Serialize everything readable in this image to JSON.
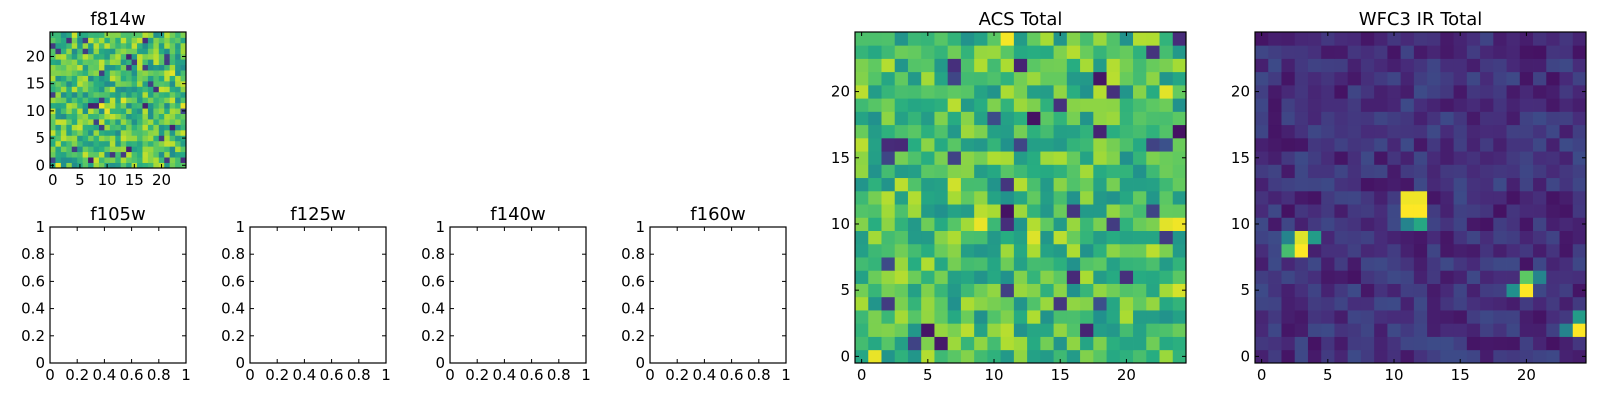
{
  "colors": {
    "background": "#ffffff",
    "axes": "#000000",
    "viridis_low": "#440154",
    "viridis_mid": "#21918c",
    "viridis_high": "#fde725"
  },
  "chart_data": [
    {
      "type": "heatmap",
      "title": "f814w",
      "grid_size": [
        25,
        25
      ],
      "colormap": "viridis",
      "xticks": [
        0,
        5,
        10,
        15,
        20
      ],
      "yticks": [
        0,
        5,
        10,
        15,
        20
      ],
      "xlim": [
        -0.5,
        24.5
      ],
      "ylim": [
        -0.5,
        24.5
      ],
      "noise": {
        "seed": 1,
        "mean": 0.7,
        "spread": 0.22,
        "low_outlier_rate": 0.05,
        "low_value": 0.08
      },
      "hotspots": [
        {
          "x": 9,
          "y": 11,
          "value": 0.98
        },
        {
          "x": 10,
          "y": 10,
          "value": 0.96
        },
        {
          "x": 13,
          "y": 12,
          "value": 0.95
        },
        {
          "x": 24,
          "y": 11,
          "value": 0.97
        },
        {
          "x": 1,
          "y": 0,
          "value": 0.97
        },
        {
          "x": 22,
          "y": 17,
          "value": 0.96
        }
      ]
    },
    {
      "type": "heatmap",
      "title": "f105w",
      "empty": true,
      "xticks": [
        0.0,
        0.2,
        0.4,
        0.6,
        0.8,
        1.0
      ],
      "yticks": [
        0.0,
        0.2,
        0.4,
        0.6,
        0.8,
        1.0
      ],
      "xlim": [
        0,
        1
      ],
      "ylim": [
        0,
        1
      ]
    },
    {
      "type": "heatmap",
      "title": "f125w",
      "empty": true,
      "xticks": [
        0.0,
        0.2,
        0.4,
        0.6,
        0.8,
        1.0
      ],
      "yticks": [
        0.0,
        0.2,
        0.4,
        0.6,
        0.8,
        1.0
      ],
      "xlim": [
        0,
        1
      ],
      "ylim": [
        0,
        1
      ]
    },
    {
      "type": "heatmap",
      "title": "f140w",
      "empty": true,
      "xticks": [
        0.0,
        0.2,
        0.4,
        0.6,
        0.8,
        1.0
      ],
      "yticks": [
        0.0,
        0.2,
        0.4,
        0.6,
        0.8,
        1.0
      ],
      "xlim": [
        0,
        1
      ],
      "ylim": [
        0,
        1
      ]
    },
    {
      "type": "heatmap",
      "title": "f160w",
      "empty": true,
      "xticks": [
        0.0,
        0.2,
        0.4,
        0.6,
        0.8,
        1.0
      ],
      "yticks": [
        0.0,
        0.2,
        0.4,
        0.6,
        0.8,
        1.0
      ],
      "xlim": [
        0,
        1
      ],
      "ylim": [
        0,
        1
      ]
    },
    {
      "type": "heatmap",
      "title": "ACS Total",
      "grid_size": [
        25,
        25
      ],
      "colormap": "viridis",
      "xticks": [
        0,
        5,
        10,
        15,
        20
      ],
      "yticks": [
        0,
        5,
        10,
        15,
        20
      ],
      "xlim": [
        -0.5,
        24.5
      ],
      "ylim": [
        -0.5,
        24.5
      ],
      "noise": {
        "seed": 7,
        "mean": 0.7,
        "spread": 0.2,
        "low_outlier_rate": 0.035,
        "low_value": 0.1
      },
      "hotspots": [
        {
          "x": 11,
          "y": 24,
          "value": 0.98
        },
        {
          "x": 9,
          "y": 10,
          "value": 0.97
        },
        {
          "x": 24,
          "y": 10,
          "value": 0.98
        },
        {
          "x": 23,
          "y": 10,
          "value": 0.96
        },
        {
          "x": 1,
          "y": 0,
          "value": 0.97
        },
        {
          "x": 13,
          "y": 9,
          "value": 0.95
        },
        {
          "x": 23,
          "y": 20,
          "value": 0.96
        },
        {
          "x": 24,
          "y": 5,
          "value": 0.94
        },
        {
          "x": 7,
          "y": 13,
          "value": 0.93
        },
        {
          "x": 11,
          "y": 24,
          "value": 0.99
        },
        {
          "x": 5,
          "y": 2,
          "value": 0.06
        },
        {
          "x": 11,
          "y": 11,
          "value": 0.05
        },
        {
          "x": 13,
          "y": 18,
          "value": 0.05
        },
        {
          "x": 18,
          "y": 21,
          "value": 0.06
        },
        {
          "x": 24,
          "y": 17,
          "value": 0.05
        },
        {
          "x": 6,
          "y": 1,
          "value": 0.07
        }
      ]
    },
    {
      "type": "heatmap",
      "title": "WFC3 IR Total",
      "grid_size": [
        25,
        25
      ],
      "colormap": "viridis",
      "xticks": [
        0,
        5,
        10,
        15,
        20
      ],
      "yticks": [
        0,
        5,
        10,
        15,
        20
      ],
      "xlim": [
        -0.5,
        24.5
      ],
      "ylim": [
        -0.5,
        24.5
      ],
      "noise": {
        "seed": 13,
        "mean": 0.14,
        "spread": 0.09,
        "low_outlier_rate": 0,
        "low_value": 0.0
      },
      "hotspots": [
        {
          "x": 11,
          "y": 11,
          "value": 1.0
        },
        {
          "x": 12,
          "y": 11,
          "value": 1.0
        },
        {
          "x": 11,
          "y": 12,
          "value": 0.98
        },
        {
          "x": 12,
          "y": 12,
          "value": 0.98
        },
        {
          "x": 12,
          "y": 10,
          "value": 0.6
        },
        {
          "x": 11,
          "y": 10,
          "value": 0.45
        },
        {
          "x": 3,
          "y": 8,
          "value": 1.0
        },
        {
          "x": 3,
          "y": 9,
          "value": 0.95
        },
        {
          "x": 2,
          "y": 8,
          "value": 0.7
        },
        {
          "x": 4,
          "y": 9,
          "value": 0.55
        },
        {
          "x": 2,
          "y": 9,
          "value": 0.45
        },
        {
          "x": 20,
          "y": 5,
          "value": 1.0
        },
        {
          "x": 20,
          "y": 6,
          "value": 0.75
        },
        {
          "x": 19,
          "y": 5,
          "value": 0.5
        },
        {
          "x": 21,
          "y": 6,
          "value": 0.45
        },
        {
          "x": 24,
          "y": 2,
          "value": 1.0
        },
        {
          "x": 24,
          "y": 3,
          "value": 0.55
        },
        {
          "x": 23,
          "y": 2,
          "value": 0.45
        }
      ]
    }
  ]
}
